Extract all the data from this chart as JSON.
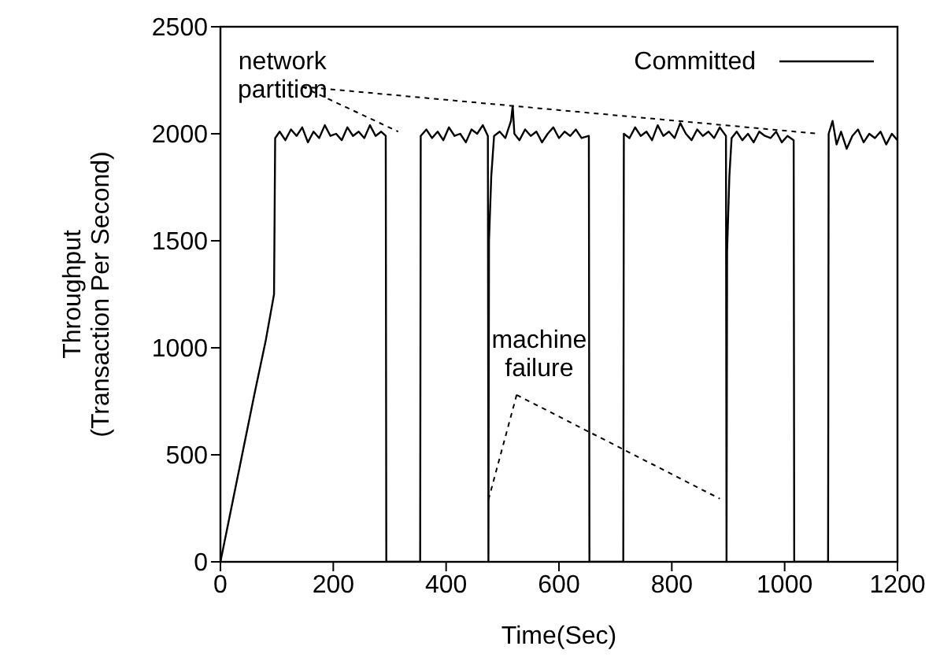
{
  "chart_data": {
    "type": "line",
    "xlabel": "Time(Sec)",
    "ylabel": "Throughput\n(Transaction Per Second)",
    "x": [
      0,
      20,
      40,
      60,
      80,
      95,
      97,
      105,
      115,
      125,
      135,
      145,
      155,
      165,
      175,
      185,
      195,
      205,
      215,
      225,
      235,
      245,
      255,
      265,
      275,
      285,
      293,
      294,
      354,
      355,
      365,
      375,
      385,
      395,
      405,
      415,
      425,
      435,
      445,
      455,
      465,
      474,
      475,
      476,
      480,
      485,
      495,
      505,
      515,
      518,
      521,
      530,
      540,
      550,
      560,
      570,
      580,
      590,
      600,
      610,
      620,
      630,
      640,
      653,
      654,
      714,
      715,
      725,
      735,
      745,
      755,
      765,
      775,
      785,
      795,
      805,
      815,
      825,
      835,
      845,
      855,
      865,
      875,
      885,
      896,
      897,
      898,
      902,
      906,
      915,
      925,
      935,
      945,
      955,
      965,
      975,
      985,
      995,
      1005,
      1016,
      1017,
      1077,
      1078,
      1085,
      1092,
      1100,
      1110,
      1120,
      1130,
      1140,
      1150,
      1160,
      1170,
      1180,
      1190,
      1200
    ],
    "series": [
      {
        "name": "Committed",
        "color": "#000000",
        "values": [
          0,
          260,
          520,
          780,
          1030,
          1250,
          1980,
          2010,
          1970,
          2020,
          1990,
          2030,
          1960,
          2010,
          1980,
          2040,
          1990,
          2000,
          1970,
          2030,
          1990,
          2010,
          1980,
          2040,
          1990,
          2010,
          1990,
          0,
          0,
          1990,
          2020,
          1980,
          2010,
          1970,
          2030,
          1990,
          2000,
          1960,
          2020,
          2000,
          2040,
          1990,
          0,
          1500,
          1800,
          1990,
          2010,
          1980,
          2060,
          2130,
          2000,
          1970,
          2020,
          1990,
          2010,
          1960,
          2000,
          2030,
          1980,
          2010,
          1990,
          2020,
          1980,
          1990,
          0,
          0,
          2000,
          1980,
          2030,
          1990,
          2010,
          1970,
          2040,
          1990,
          2010,
          1980,
          2050,
          2000,
          1970,
          2020,
          1990,
          2010,
          1980,
          2030,
          1990,
          0,
          1450,
          1800,
          1980,
          2010,
          1970,
          2000,
          1960,
          2010,
          1990,
          1980,
          2010,
          1960,
          1990,
          1970,
          0,
          0,
          2000,
          2060,
          1950,
          2010,
          1930,
          1990,
          2020,
          1960,
          2000,
          1980,
          2010,
          1950,
          2000,
          1970
        ]
      }
    ],
    "xlim": [
      0,
      1200
    ],
    "xticks": [
      0,
      200,
      400,
      600,
      800,
      1000,
      1200
    ],
    "ylim": [
      0,
      2500
    ],
    "yticks": [
      0,
      500,
      1000,
      1500,
      2000,
      2500
    ],
    "grid": false,
    "legend": "top right",
    "marker": "none",
    "line_style": "solid",
    "annotations": [
      "network\npartition",
      {
        "text": "machine\nfailure",
        "x": 475,
        "y": 290
      }
    ]
  }
}
